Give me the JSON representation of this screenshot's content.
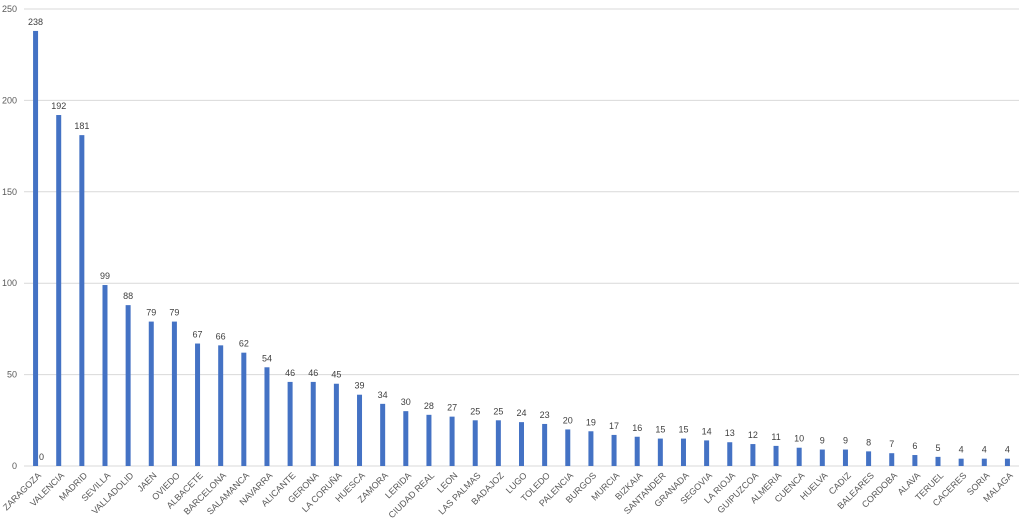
{
  "chart_data": {
    "type": "bar",
    "categories": [
      "ZARAGOZA",
      "VALENCIA",
      "MADRID",
      "SEVILLA",
      "VALLADOLID",
      "JAEN",
      "OVIEDO",
      "ALBACETE",
      "BARCELONA",
      "SALAMANCA",
      "NAVARRA",
      "ALICANTE",
      "GERONA",
      "LA CORUÑA",
      "HUESCA",
      "ZAMORA",
      "LERIDA",
      "CIUDAD REAL",
      "LEON",
      "LAS PALMAS",
      "BADAJOZ",
      "LUGO",
      "TOLEDO",
      "PALENCIA",
      "BURGOS",
      "MURCIA",
      "BIZKAIA",
      "SANTANDER",
      "GRANADA",
      "SEGOVIA",
      "LA RIOJA",
      "GUIPUZCOA",
      "ALMERIA",
      "CUENCA",
      "HUELVA",
      "CADIZ",
      "BALEARES",
      "CORDOBA",
      "ALAVA",
      "TERUEL",
      "CACERES",
      "SORIA",
      "MALAGA"
    ],
    "series": [
      {
        "color": "#4472c4",
        "values": [
          238,
          192,
          181,
          99,
          88,
          79,
          79,
          67,
          66,
          62,
          54,
          46,
          46,
          45,
          39,
          34,
          30,
          28,
          27,
          25,
          25,
          24,
          23,
          20,
          19,
          17,
          16,
          15,
          15,
          14,
          13,
          12,
          11,
          10,
          9,
          9,
          8,
          7,
          6,
          5,
          4,
          4,
          4
        ]
      },
      {
        "color": "#ed7d31",
        "values": [
          0,
          null,
          null,
          null,
          null,
          null,
          null,
          null,
          null,
          null,
          null,
          null,
          null,
          null,
          null,
          null,
          null,
          null,
          null,
          null,
          null,
          null,
          null,
          null,
          null,
          null,
          null,
          null,
          null,
          null,
          null,
          null,
          null,
          null,
          null,
          null,
          null,
          null,
          null,
          null,
          null,
          null,
          null
        ]
      }
    ],
    "ylim": [
      0,
      250
    ],
    "yticks": [
      0,
      50,
      100,
      150,
      200,
      250
    ],
    "grid": true
  }
}
